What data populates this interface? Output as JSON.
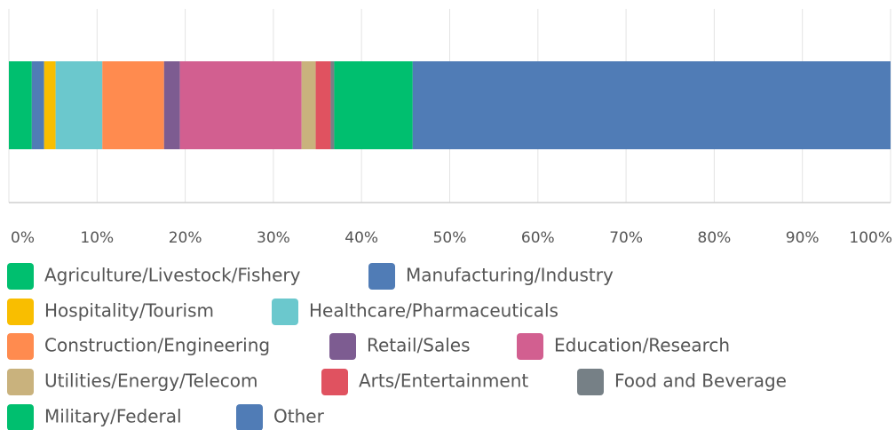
{
  "chart_data": {
    "type": "stacked-bar-horizontal",
    "series": [
      {
        "name": "Agriculture/Livestock/Fishery",
        "color": "#00bf6f",
        "values": [
          2.6
        ]
      },
      {
        "name": "Manufacturing/Industry",
        "color": "#507cb6",
        "values": [
          1.4
        ]
      },
      {
        "name": "Hospitality/Tourism",
        "color": "#f9be00",
        "values": [
          1.3
        ]
      },
      {
        "name": "Healthcare/Pharmaceuticals",
        "color": "#6bc8cd",
        "values": [
          5.3
        ]
      },
      {
        "name": "Construction/Engineering",
        "color": "#ff8b4f",
        "values": [
          7.0
        ]
      },
      {
        "name": "Retail/Sales",
        "color": "#7d5c91",
        "values": [
          1.8
        ]
      },
      {
        "name": "Education/Research",
        "color": "#d25f90",
        "values": [
          13.8
        ]
      },
      {
        "name": "Utilities/Energy/Telecom",
        "color": "#c9b27d",
        "values": [
          1.6
        ]
      },
      {
        "name": "Arts/Entertainment",
        "color": "#e05260",
        "values": [
          1.7
        ]
      },
      {
        "name": "Food and Beverage",
        "color": "#768086",
        "values": [
          0.4
        ]
      },
      {
        "name": "Military/Federal",
        "color": "#00bf6f",
        "values": [
          8.9
        ]
      },
      {
        "name": "Other",
        "color": "#507cb6",
        "values": [
          54.2
        ]
      }
    ],
    "xlim": [
      0,
      100
    ],
    "xticks": [
      {
        "value": 0,
        "label": "0%"
      },
      {
        "value": 10,
        "label": "10%"
      },
      {
        "value": 20,
        "label": "20%"
      },
      {
        "value": 30,
        "label": "30%"
      },
      {
        "value": 40,
        "label": "40%"
      },
      {
        "value": 50,
        "label": "50%"
      },
      {
        "value": 60,
        "label": "60%"
      },
      {
        "value": 70,
        "label": "70%"
      },
      {
        "value": 80,
        "label": "80%"
      },
      {
        "value": 90,
        "label": "90%"
      },
      {
        "value": 100,
        "label": "100%"
      }
    ],
    "grid": true
  }
}
